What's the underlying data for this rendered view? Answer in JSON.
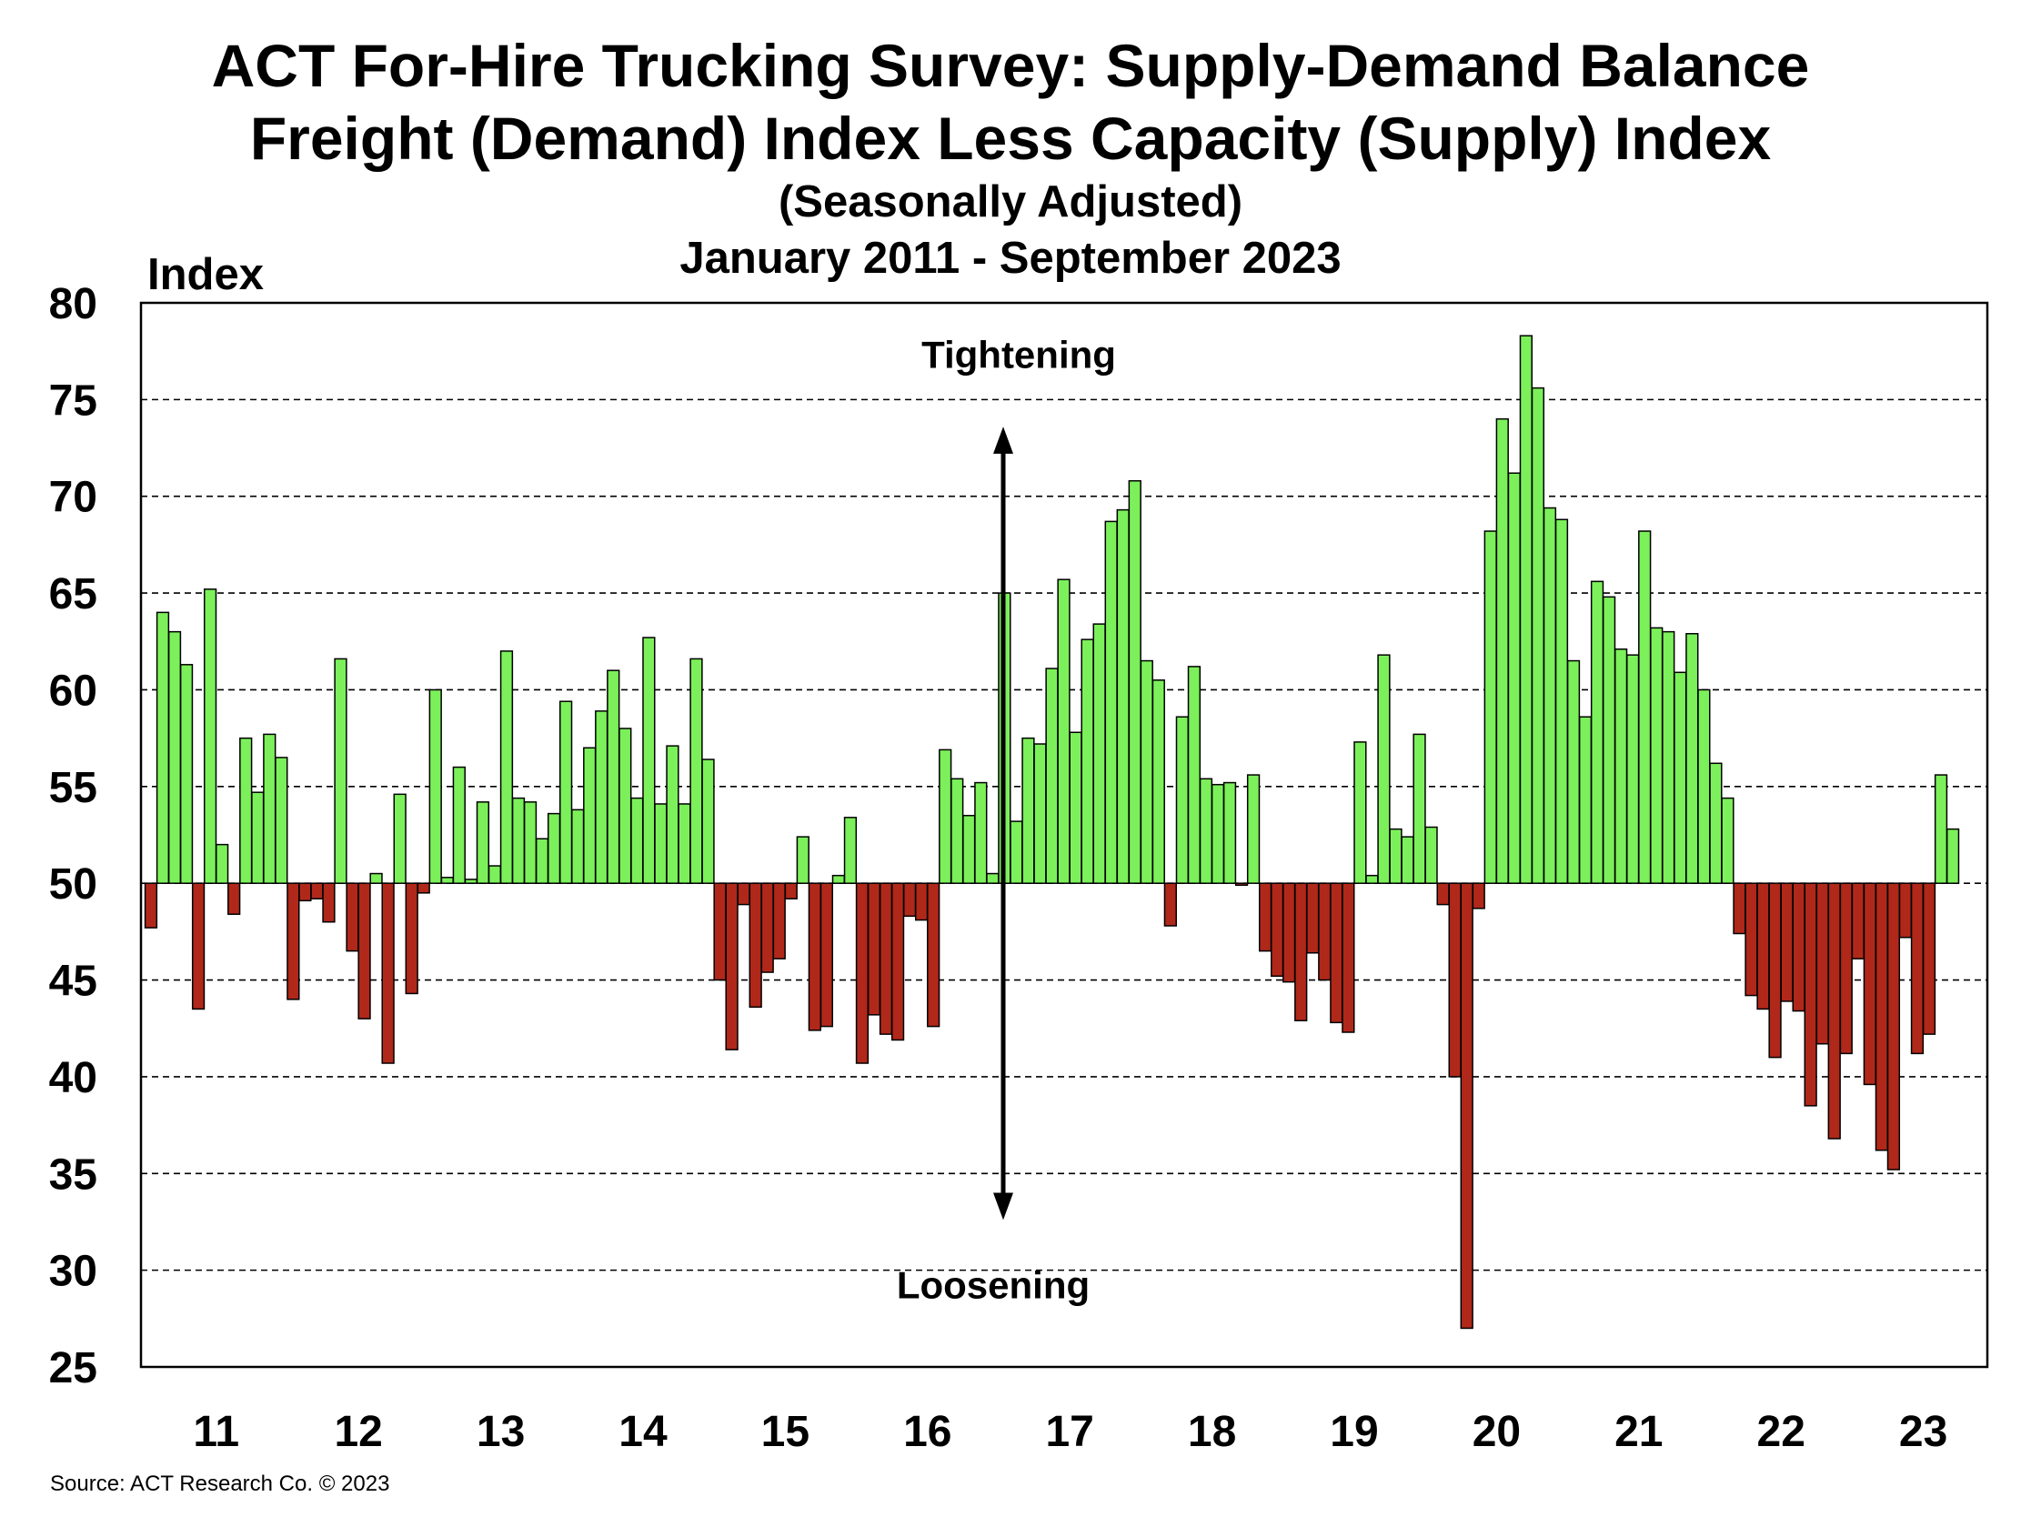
{
  "title": "ACT For-Hire Trucking Survey: Supply-Demand Balance",
  "subtitle": "Freight (Demand) Index Less Capacity (Supply) Index",
  "note": "(Seasonally Adjusted)",
  "period": "January 2011 - September 2023",
  "source": "Source: ACT Research Co. © 2023",
  "colors": {
    "above": "#7CF05A",
    "below": "#B0281A",
    "edge": "#000000"
  },
  "chart_data": {
    "type": "bar",
    "ylabel": "Index",
    "ylim": [
      25,
      80
    ],
    "yticks": [
      25,
      30,
      35,
      40,
      45,
      50,
      55,
      60,
      65,
      70,
      75,
      80
    ],
    "baseline": 50,
    "grid": "dashed horizontal",
    "x_start": "2011-01",
    "x_end": "2023-09",
    "year_labels": [
      "11",
      "12",
      "13",
      "14",
      "15",
      "16",
      "17",
      "18",
      "19",
      "20",
      "21",
      "22",
      "23"
    ],
    "annotations": {
      "top": "Tightening",
      "bottom": "Loosening"
    },
    "values": [
      47.7,
      64.0,
      63.0,
      61.3,
      43.5,
      65.2,
      52.0,
      48.4,
      57.5,
      54.7,
      57.7,
      56.5,
      44.0,
      49.1,
      49.2,
      48.0,
      61.6,
      46.5,
      43.0,
      50.5,
      40.7,
      54.6,
      44.3,
      49.5,
      60.0,
      50.3,
      56.0,
      50.2,
      54.2,
      50.9,
      62.0,
      54.4,
      54.2,
      52.3,
      53.6,
      59.4,
      53.8,
      57.0,
      58.9,
      61.0,
      58.0,
      54.4,
      62.7,
      54.1,
      57.1,
      54.1,
      61.6,
      56.4,
      45.0,
      41.4,
      48.9,
      43.6,
      45.4,
      46.1,
      49.2,
      52.4,
      42.4,
      42.6,
      50.4,
      53.4,
      40.7,
      43.2,
      42.2,
      41.9,
      48.3,
      48.1,
      42.6,
      56.9,
      55.4,
      53.5,
      55.2,
      50.5,
      65.0,
      53.2,
      57.5,
      57.2,
      61.1,
      65.7,
      57.8,
      62.6,
      63.4,
      68.7,
      69.3,
      70.8,
      61.5,
      60.5,
      47.8,
      58.6,
      61.2,
      55.4,
      55.1,
      55.2,
      49.9,
      55.6,
      46.5,
      45.2,
      44.9,
      42.9,
      46.4,
      45.0,
      42.8,
      42.3,
      57.3,
      50.4,
      61.8,
      52.8,
      52.4,
      57.7,
      52.9,
      48.9,
      40.0,
      27.0,
      48.7,
      68.2,
      74.0,
      71.2,
      78.3,
      75.6,
      69.4,
      68.8,
      61.5,
      58.6,
      65.6,
      64.8,
      62.1,
      61.8,
      68.2,
      63.2,
      63.0,
      60.9,
      62.9,
      60.0,
      56.2,
      54.4,
      47.4,
      44.2,
      43.5,
      41.0,
      43.9,
      43.4,
      38.5,
      41.7,
      36.8,
      41.2,
      46.1,
      39.6,
      36.2,
      35.2,
      47.2,
      41.2,
      42.2,
      55.6,
      52.8
    ]
  }
}
